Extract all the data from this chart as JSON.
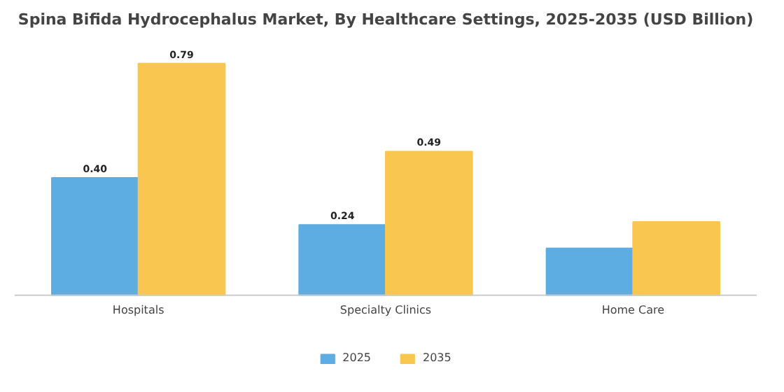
{
  "chart_data": {
    "type": "bar",
    "title": "Spina Bifida Hydrocephalus Market, By Healthcare Settings, 2025-2035 (USD Billion)",
    "categories": [
      "Hospitals",
      "Specialty Clinics",
      "Home Care"
    ],
    "series": [
      {
        "name": "2025",
        "color": "#5dade2",
        "values": [
          0.4,
          0.24,
          0.16
        ],
        "value_labels": [
          "0.40",
          "0.24",
          null
        ]
      },
      {
        "name": "2035",
        "color": "#f9c74f",
        "values": [
          0.79,
          0.49,
          0.25
        ],
        "value_labels": [
          "0.79",
          "0.49",
          null
        ]
      }
    ],
    "legend": "bottom"
  }
}
